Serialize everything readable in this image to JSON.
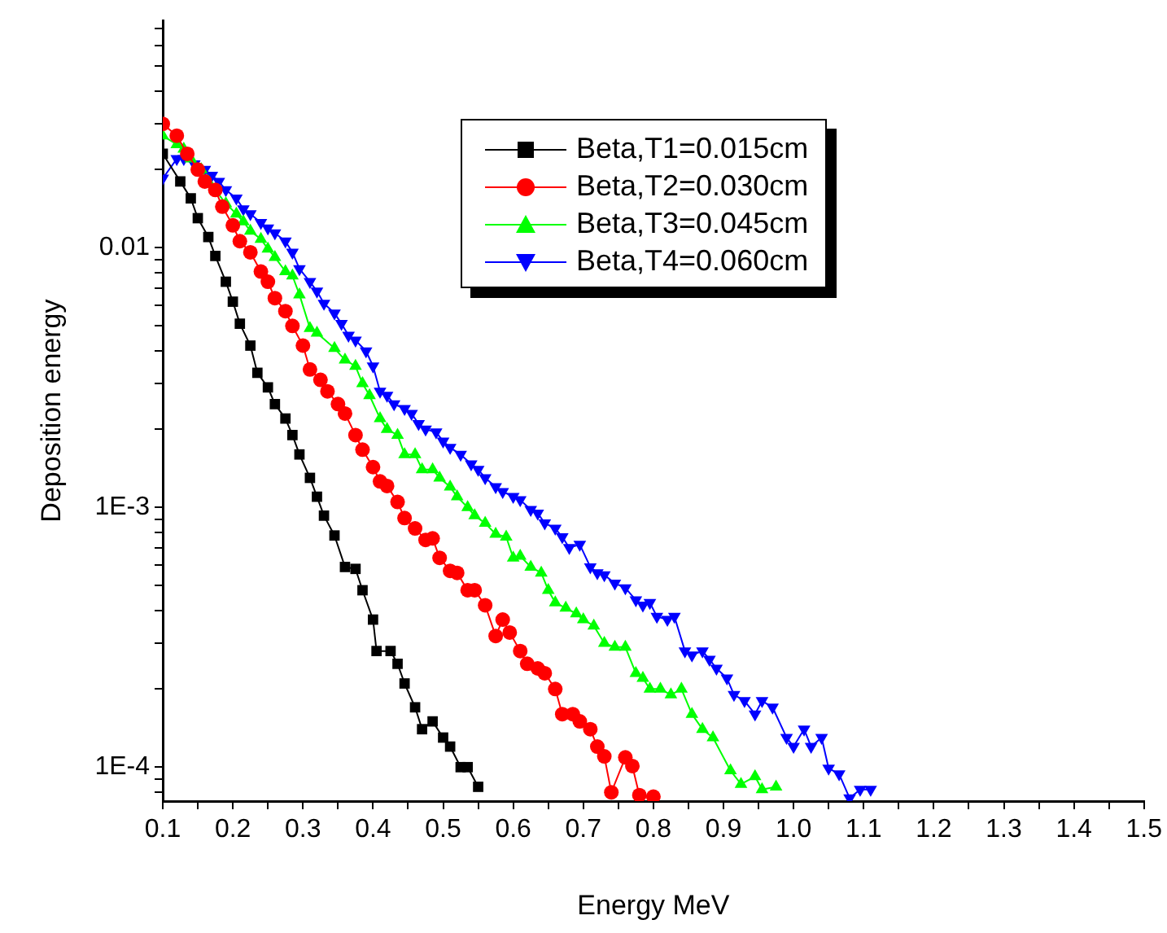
{
  "chart_data": {
    "type": "line",
    "xlabel": "Energy MeV",
    "ylabel": "Deposition energy",
    "log": "y",
    "grid": false,
    "legend": "top right",
    "line_style": "solid",
    "xlim": [
      0.1,
      1.5
    ],
    "xticks": [
      0.1,
      {
        "value": 0.15,
        "label": null
      },
      0.2,
      {
        "value": 0.25,
        "label": null
      },
      0.3,
      {
        "value": 0.35,
        "label": null
      },
      0.4,
      {
        "value": 0.45,
        "label": null
      },
      0.5,
      {
        "value": 0.55,
        "label": null
      },
      0.6,
      {
        "value": 0.65,
        "label": null
      },
      0.7,
      {
        "value": 0.75,
        "label": null
      },
      0.8,
      {
        "value": 0.85,
        "label": null
      },
      0.9,
      {
        "value": 0.95,
        "label": null
      },
      {
        "value": 1,
        "label": "1.0"
      },
      {
        "value": 1.05,
        "label": null
      },
      1.1,
      {
        "value": 1.15,
        "label": null
      },
      1.2,
      {
        "value": 1.25,
        "label": null
      },
      1.3,
      {
        "value": 1.35,
        "label": null
      },
      1.4,
      {
        "value": 1.45,
        "label": null
      },
      1.5
    ],
    "ylim": [
      7.4e-05,
      0.075
    ],
    "yticks": [
      {
        "value": 8e-05,
        "label": null
      },
      {
        "value": 9e-05,
        "label": null
      },
      {
        "value": 0.0001,
        "label": "1E-4"
      },
      {
        "value": 0.0002,
        "label": null
      },
      {
        "value": 0.0003,
        "label": null
      },
      {
        "value": 0.0004,
        "label": null
      },
      {
        "value": 0.0005,
        "label": null
      },
      {
        "value": 0.0006,
        "label": null
      },
      {
        "value": 0.0007,
        "label": null
      },
      {
        "value": 0.0008,
        "label": null
      },
      {
        "value": 0.0009,
        "label": null
      },
      {
        "value": 0.001,
        "label": "1E-3"
      },
      {
        "value": 0.002,
        "label": null
      },
      {
        "value": 0.003,
        "label": null
      },
      {
        "value": 0.004,
        "label": null
      },
      {
        "value": 0.005,
        "label": null
      },
      {
        "value": 0.006,
        "label": null
      },
      {
        "value": 0.007,
        "label": null
      },
      {
        "value": 0.008,
        "label": null
      },
      {
        "value": 0.009,
        "label": null
      },
      0.01,
      {
        "value": 0.02,
        "label": null
      },
      {
        "value": 0.03,
        "label": null
      },
      {
        "value": 0.04,
        "label": null
      },
      {
        "value": 0.05,
        "label": null
      },
      {
        "value": 0.06,
        "label": null
      },
      {
        "value": 0.07,
        "label": null
      }
    ],
    "series": [
      {
        "name": "Beta,T1=0.015cm",
        "color": "#000000",
        "marker": "square",
        "x": [
          0.1,
          0.125,
          0.14,
          0.15,
          0.165,
          0.175,
          0.19,
          0.2,
          0.21,
          0.225,
          0.235,
          0.25,
          0.26,
          0.275,
          0.285,
          0.295,
          0.31,
          0.32,
          0.33,
          0.345,
          0.36,
          0.375,
          0.385,
          0.4,
          0.405,
          0.425,
          0.435,
          0.445,
          0.46,
          0.47,
          0.485,
          0.5,
          0.51,
          0.525,
          0.535,
          0.55
        ],
        "values": [
          0.023,
          0.018,
          0.0155,
          0.013,
          0.011,
          0.0093,
          0.0074,
          0.0062,
          0.0051,
          0.0042,
          0.0033,
          0.0029,
          0.0025,
          0.0022,
          0.0019,
          0.0016,
          0.0013,
          0.0011,
          0.00093,
          0.00078,
          0.00059,
          0.00058,
          0.00048,
          0.00037,
          0.00028,
          0.00028,
          0.00025,
          0.00021,
          0.00017,
          0.00014,
          0.00015,
          0.00013,
          0.00012,
          0.0001,
          0.0001,
          8.4e-05
        ]
      },
      {
        "name": "Beta,T2=0.030cm",
        "color": "#ff0000",
        "marker": "circle",
        "x": [
          0.1,
          0.12,
          0.135,
          0.15,
          0.16,
          0.175,
          0.185,
          0.2,
          0.21,
          0.225,
          0.24,
          0.25,
          0.26,
          0.275,
          0.285,
          0.3,
          0.31,
          0.325,
          0.335,
          0.35,
          0.36,
          0.375,
          0.385,
          0.4,
          0.41,
          0.42,
          0.435,
          0.445,
          0.46,
          0.475,
          0.485,
          0.495,
          0.51,
          0.52,
          0.535,
          0.545,
          0.56,
          0.575,
          0.585,
          0.595,
          0.61,
          0.62,
          0.635,
          0.645,
          0.66,
          0.67,
          0.685,
          0.695,
          0.71,
          0.72,
          0.73,
          0.74,
          0.76,
          0.77,
          0.78,
          0.8
        ],
        "values": [
          0.03,
          0.027,
          0.023,
          0.02,
          0.018,
          0.0167,
          0.0144,
          0.0122,
          0.0106,
          0.0096,
          0.0081,
          0.0074,
          0.0064,
          0.0057,
          0.005,
          0.0042,
          0.0034,
          0.0031,
          0.0028,
          0.0025,
          0.0023,
          0.0019,
          0.00167,
          0.00143,
          0.00126,
          0.00121,
          0.00105,
          0.00091,
          0.00083,
          0.00075,
          0.00076,
          0.00064,
          0.00057,
          0.00056,
          0.00048,
          0.00048,
          0.00042,
          0.00032,
          0.00037,
          0.00033,
          0.00028,
          0.00025,
          0.00024,
          0.00023,
          0.0002,
          0.00016,
          0.00016,
          0.00015,
          0.00014,
          0.00012,
          0.00011,
          8e-05,
          0.000109,
          0.000101,
          7.8e-05,
          7.7e-05
        ]
      },
      {
        "name": "Beta,T3=0.045cm",
        "color": "#00ff00",
        "marker": "triangle",
        "x": [
          0.1,
          0.12,
          0.13,
          0.14,
          0.155,
          0.165,
          0.175,
          0.19,
          0.205,
          0.215,
          0.225,
          0.24,
          0.25,
          0.26,
          0.275,
          0.285,
          0.295,
          0.31,
          0.32,
          0.345,
          0.36,
          0.375,
          0.385,
          0.395,
          0.41,
          0.42,
          0.435,
          0.445,
          0.46,
          0.47,
          0.485,
          0.495,
          0.51,
          0.52,
          0.535,
          0.545,
          0.56,
          0.575,
          0.59,
          0.6,
          0.61,
          0.625,
          0.64,
          0.65,
          0.66,
          0.675,
          0.69,
          0.7,
          0.715,
          0.73,
          0.745,
          0.76,
          0.775,
          0.785,
          0.795,
          0.81,
          0.825,
          0.84,
          0.855,
          0.87,
          0.885,
          0.91,
          0.925,
          0.945,
          0.955,
          0.975
        ],
        "values": [
          0.027,
          0.025,
          0.024,
          0.022,
          0.02,
          0.018,
          0.0167,
          0.0148,
          0.0135,
          0.0126,
          0.0116,
          0.0108,
          0.0099,
          0.0092,
          0.0081,
          0.0078,
          0.0066,
          0.0049,
          0.0047,
          0.0041,
          0.0037,
          0.0035,
          0.003,
          0.0027,
          0.0022,
          0.002,
          0.0019,
          0.0016,
          0.0016,
          0.0014,
          0.0014,
          0.0013,
          0.0012,
          0.0011,
          0.001,
          0.00093,
          0.00087,
          0.00079,
          0.00077,
          0.00064,
          0.00065,
          0.00059,
          0.00056,
          0.00048,
          0.00043,
          0.00041,
          0.00039,
          0.00037,
          0.00035,
          0.0003,
          0.00029,
          0.00029,
          0.00023,
          0.00022,
          0.0002,
          0.0002,
          0.00019,
          0.0002,
          0.00016,
          0.00014,
          0.00013,
          9.7e-05,
          8.6e-05,
          9.2e-05,
          8.2e-05,
          8.4e-05
        ]
      },
      {
        "name": "Beta,T4=0.060cm",
        "color": "#0000ff",
        "marker": "triangle-down",
        "x": [
          0.1,
          0.12,
          0.13,
          0.145,
          0.16,
          0.17,
          0.18,
          0.19,
          0.205,
          0.215,
          0.225,
          0.24,
          0.25,
          0.26,
          0.275,
          0.285,
          0.295,
          0.31,
          0.32,
          0.33,
          0.345,
          0.355,
          0.365,
          0.375,
          0.39,
          0.4,
          0.41,
          0.42,
          0.43,
          0.445,
          0.455,
          0.465,
          0.475,
          0.49,
          0.5,
          0.51,
          0.525,
          0.54,
          0.55,
          0.56,
          0.575,
          0.585,
          0.6,
          0.61,
          0.625,
          0.635,
          0.645,
          0.66,
          0.67,
          0.68,
          0.695,
          0.71,
          0.72,
          0.73,
          0.745,
          0.76,
          0.775,
          0.785,
          0.795,
          0.805,
          0.82,
          0.83,
          0.845,
          0.855,
          0.87,
          0.88,
          0.89,
          0.905,
          0.915,
          0.93,
          0.945,
          0.955,
          0.97,
          0.99,
          1.0,
          1.015,
          1.025,
          1.04,
          1.05,
          1.065,
          1.08,
          1.095,
          1.11
        ],
        "values": [
          0.0185,
          0.022,
          0.022,
          0.021,
          0.02,
          0.019,
          0.018,
          0.0167,
          0.0155,
          0.0141,
          0.0135,
          0.0125,
          0.0119,
          0.0114,
          0.0106,
          0.0096,
          0.0083,
          0.0074,
          0.0068,
          0.0061,
          0.0056,
          0.0051,
          0.0046,
          0.0044,
          0.004,
          0.0035,
          0.0028,
          0.0027,
          0.0025,
          0.0024,
          0.0023,
          0.0021,
          0.002,
          0.00195,
          0.0018,
          0.0017,
          0.0016,
          0.00147,
          0.0014,
          0.0013,
          0.0012,
          0.00115,
          0.0011,
          0.00107,
          0.00098,
          0.00095,
          0.00087,
          0.00083,
          0.00077,
          0.0007,
          0.00072,
          0.00059,
          0.00056,
          0.00055,
          0.00051,
          0.00049,
          0.00044,
          0.00042,
          0.00043,
          0.00038,
          0.00037,
          0.00038,
          0.00028,
          0.00027,
          0.00028,
          0.00026,
          0.00024,
          0.00022,
          0.00019,
          0.00018,
          0.00016,
          0.00018,
          0.00017,
          0.00013,
          0.00012,
          0.00014,
          0.00012,
          0.00013,
          9.9e-05,
          9.4e-05,
          7.6e-05,
          8.2e-05,
          8.2e-05
        ]
      }
    ]
  }
}
